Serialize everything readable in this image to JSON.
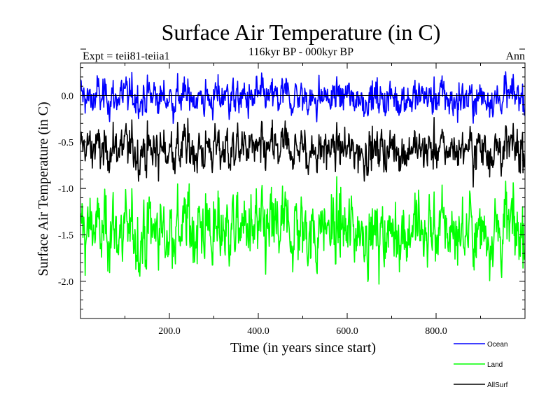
{
  "chart_data": {
    "type": "line",
    "title": "Surface Air Temperature (in C)",
    "subtitle": "116kyr BP - 000kyr BP",
    "left_note": "Expt = teii81-teiia1",
    "right_note": "Ann",
    "xlabel": "Time (in years since start)",
    "ylabel": "Surface Air Temperature (in C)",
    "xlim": [
      0,
      1000
    ],
    "ylim": [
      -2.4,
      0.35
    ],
    "x_ticks": [
      200,
      400,
      600,
      800
    ],
    "x_tick_labels": [
      "200.0",
      "400.0",
      "600.0",
      "800.0"
    ],
    "y_ticks": [
      0.0,
      -0.5,
      -1.0,
      -1.5,
      -2.0
    ],
    "y_tick_labels": [
      "0.0",
      "-0.5",
      "-1.0",
      "-1.5",
      "-2.0"
    ],
    "reference_line": 0.0,
    "legend_position": "bottom-right",
    "series": [
      {
        "name": "Ocean",
        "color": "#0000ff",
        "mean": -0.02,
        "amplitude": 0.12,
        "min": -0.3,
        "max": 0.3
      },
      {
        "name": "Land",
        "color": "#00ff00",
        "mean": -1.45,
        "amplitude": 0.25,
        "min": -2.3,
        "max": -0.78
      },
      {
        "name": "AllSurf",
        "color": "#000000",
        "mean": -0.58,
        "amplitude": 0.15,
        "min": -1.05,
        "max": -0.22
      }
    ]
  }
}
